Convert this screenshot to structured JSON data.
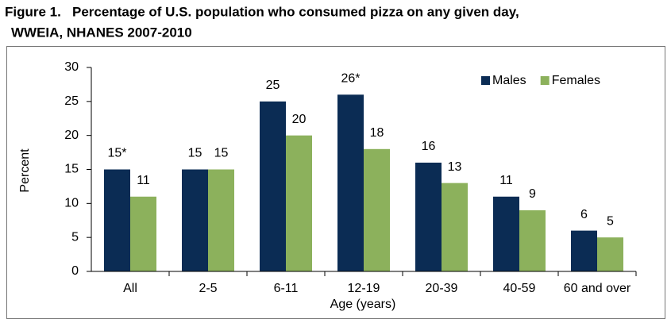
{
  "chart_data": {
    "type": "bar",
    "title_lines": [
      "Figure 1.   Percentage of U.S. population who consumed pizza on any given day,",
      "WWEIA, NHANES 2007-2010"
    ],
    "x_label": "Age (years)",
    "y_label": "Percent",
    "categories": [
      "All",
      "2-5",
      "6-11",
      "12-19",
      "20-39",
      "40-59",
      "60 and over"
    ],
    "series": [
      {
        "name": "Males",
        "color": "#0b2c54",
        "values": [
          15,
          15,
          25,
          26,
          16,
          11,
          6
        ],
        "value_labels": [
          "15*",
          null,
          null,
          "26*",
          null,
          null,
          null
        ]
      },
      {
        "name": "Females",
        "color": "#8cb15c",
        "values": [
          11,
          15,
          20,
          18,
          13,
          9,
          5
        ]
      }
    ],
    "ylim": [
      0,
      30
    ],
    "yticks": [
      0,
      5,
      10,
      15,
      20,
      25,
      30
    ],
    "grid": false,
    "legend": "top-right"
  }
}
